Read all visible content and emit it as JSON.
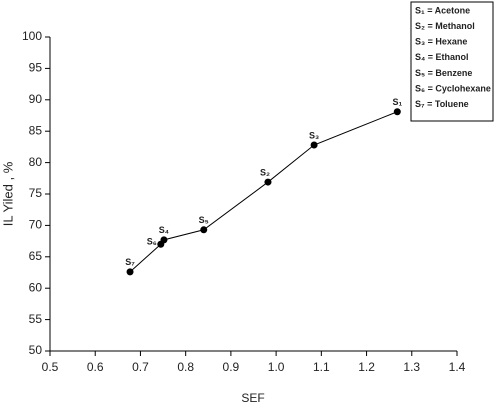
{
  "chart_data": {
    "type": "line",
    "x_label": "SEF",
    "y_label": "IL Yiled , %",
    "series": [
      {
        "color": "#000000",
        "x": [
          0.677,
          0.745,
          0.752,
          0.84,
          0.982,
          1.084,
          1.268
        ],
        "values": [
          62.6,
          67.0,
          67.7,
          69.3,
          76.9,
          82.8,
          88.1
        ],
        "point_labels": [
          "S₇",
          "S₆",
          "S₄",
          "S₅",
          "S₂",
          "S₃",
          "S₁"
        ]
      }
    ],
    "xlim": [
      0.5,
      1.4
    ],
    "xticks": [
      0.5,
      0.6,
      0.7,
      0.8,
      0.9,
      {
        "value": 1,
        "label": "1.0"
      },
      1.1,
      1.2,
      1.3,
      1.4
    ],
    "ylim": [
      50,
      100
    ],
    "yticks": [
      50,
      55,
      60,
      65,
      70,
      75,
      80,
      85,
      90,
      95,
      100
    ],
    "legend_entries": [
      "S₁ = Acetone",
      "S₂ = Methanol",
      "S₃ = Hexane",
      "S₄ = Ethanol",
      "S₅ = Benzene",
      "S₆ = Cyclohexane",
      "S₇ = Toluene"
    ]
  }
}
